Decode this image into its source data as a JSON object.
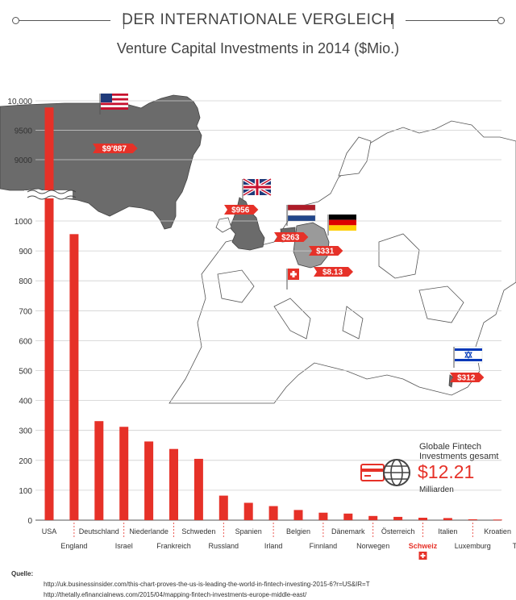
{
  "header": {
    "title": "DER INTERNATIONALE VERGLEICH",
    "subtitle": "Venture Capital Investments in 2014 ($Mio.)"
  },
  "fintech": {
    "label": "Globale Fintech Investments gesamt",
    "value": "$12.21",
    "unit": "Milliarden"
  },
  "sources": {
    "label": "Quelle:",
    "urls": [
      "http://uk.businessinsider.com/this-chart-proves-the-us-is-leading-the-world-in-fintech-investing-2015-6?r=US&IR=T",
      "http://thetally.efinancialnews.com/2015/04/mapping-fintech-investments-europe-middle-east/"
    ]
  },
  "chart_data": {
    "type": "bar",
    "categories": [
      "USA",
      "England",
      "Deutschland",
      "Israel",
      "Niederlande",
      "Frankreich",
      "Schweden",
      "Russland",
      "Spanien",
      "Irland",
      "Belgien",
      "Finnland",
      "Dänemark",
      "Norwegen",
      "Österreich",
      "Schweiz",
      "Italien",
      "Luxemburg",
      "Kroatien",
      "Türkei"
    ],
    "values": [
      9887,
      956,
      331,
      312,
      263,
      238,
      205,
      82,
      58,
      47,
      34,
      25,
      22,
      14,
      11,
      8.13,
      7,
      3,
      2,
      1
    ],
    "yticks_lower": [
      "0",
      "100",
      "200",
      "300",
      "400",
      "500",
      "600",
      "700",
      "800",
      "900",
      "1000"
    ],
    "yticks_upper": [
      "9000",
      "9500",
      "10,000"
    ],
    "ylim_lower": [
      0,
      1000
    ],
    "ylim_upper": [
      8800,
      10000
    ],
    "axis_break": true,
    "highlight": "Schweiz",
    "grid": true,
    "map_labels": [
      {
        "country": "USA",
        "label": "$9'887",
        "flag": "usa"
      },
      {
        "country": "England",
        "label": "$956",
        "flag": "uk"
      },
      {
        "country": "Niederlande",
        "label": "$263",
        "flag": "netherlands"
      },
      {
        "country": "Deutschland",
        "label": "$331",
        "flag": "germany"
      },
      {
        "country": "Schweiz",
        "label": "$8.13",
        "flag": "switzerland"
      },
      {
        "country": "Israel",
        "label": "$312",
        "flag": "israel"
      }
    ],
    "colors": {
      "bar": "#e63128",
      "map": "#6b6b6b",
      "outline": "#555555",
      "grid": "#cfcfcf",
      "highlight": "#e63128"
    }
  }
}
